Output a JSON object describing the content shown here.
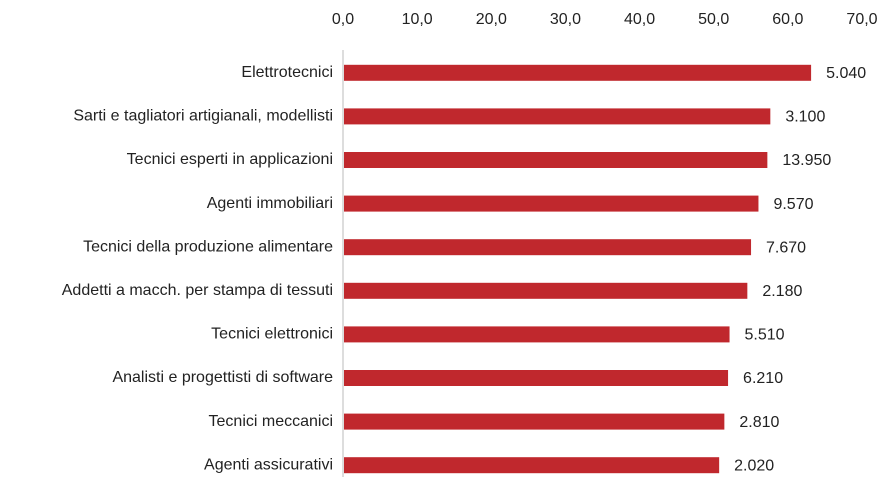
{
  "chart_data": {
    "type": "hbar",
    "categories": [
      "Elettrotecnici",
      "Sarti e tagliatori artigianali, modellisti",
      "Tecnici esperti in applicazioni",
      "Agenti immobiliari",
      "Tecnici della produzione alimentare",
      "Addetti a macch. per stampa di tessuti",
      "Tecnici elettronici",
      "Analisti e progettisti di software",
      "Tecnici meccanici",
      "Agenti assicurativi"
    ],
    "values": [
      63.0,
      57.5,
      57.1,
      55.9,
      54.9,
      54.4,
      52.0,
      51.8,
      51.3,
      50.6
    ],
    "count_labels": [
      "5.040",
      "3.100",
      "13.950",
      "9.570",
      "7.670",
      "2.180",
      "5.510",
      "6.210",
      "2.810",
      "2.020"
    ],
    "color": "#c0282d",
    "xlim": [
      0,
      70
    ],
    "xticks": [
      {
        "value": 0,
        "label": "0,0"
      },
      {
        "value": 10,
        "label": "10,0"
      },
      {
        "value": 20,
        "label": "20,0"
      },
      {
        "value": 30,
        "label": "30,0"
      },
      {
        "value": 40,
        "label": "40,0"
      },
      {
        "value": 50,
        "label": "50,0"
      },
      {
        "value": 60,
        "label": "60,0"
      },
      {
        "value": 70,
        "label": "70,0"
      }
    ],
    "grid": false
  }
}
